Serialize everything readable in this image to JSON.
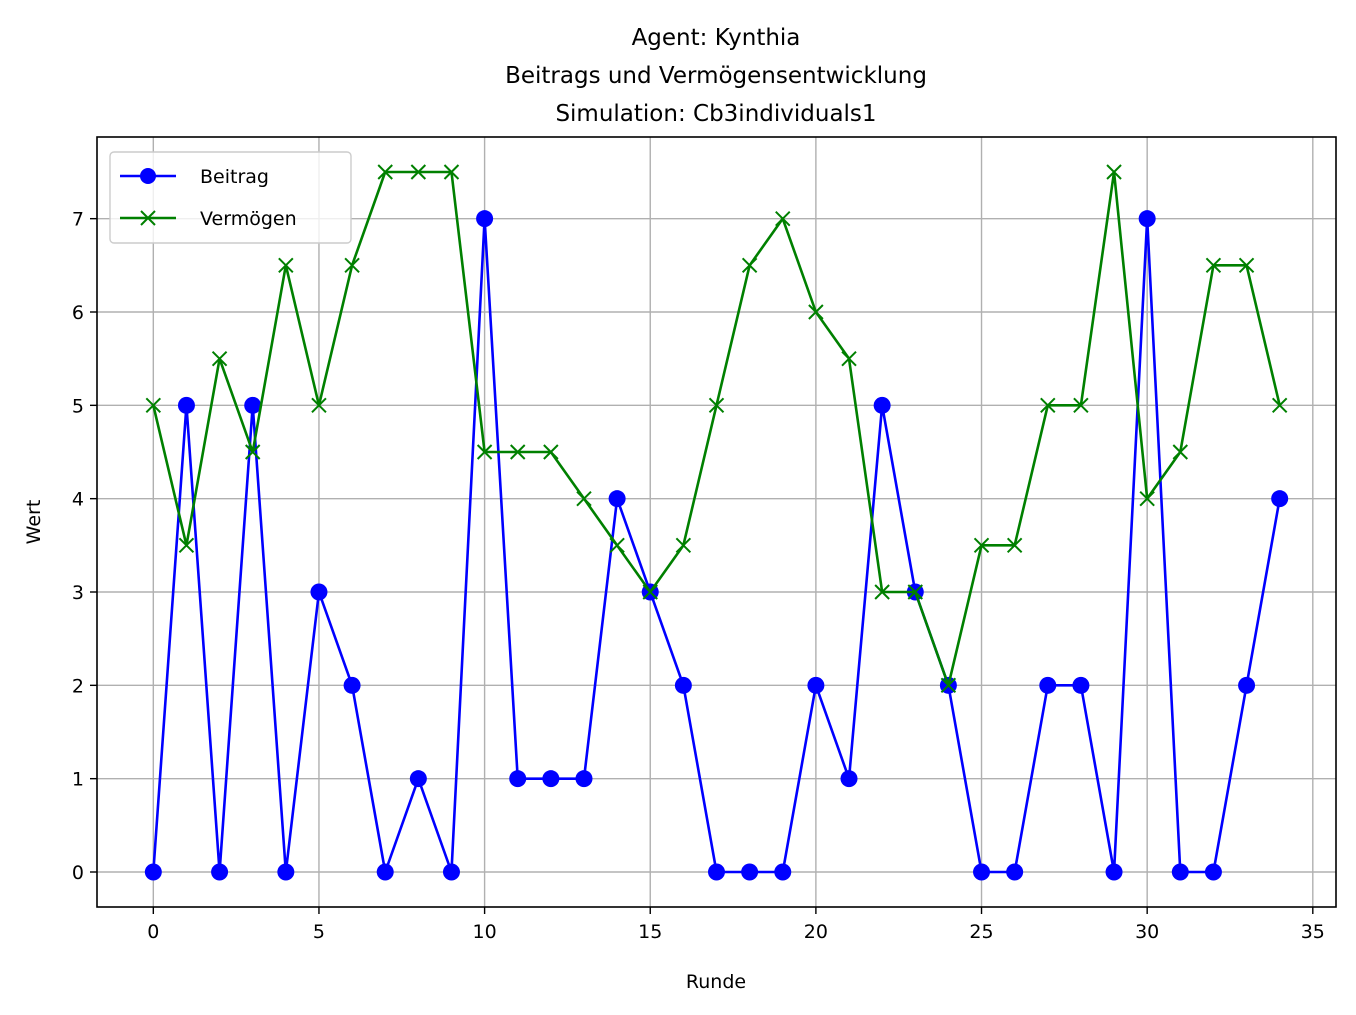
{
  "chart_data": {
    "type": "line",
    "title": [
      "Agent: Kynthia",
      "Beitrags und Vermögensentwicklung",
      "Simulation: Cb3individuals1"
    ],
    "xlabel": "Runde",
    "ylabel": "Wert",
    "xlim": [
      -1.7,
      35.7
    ],
    "ylim": [
      -0.375,
      7.875
    ],
    "xticks": [
      0,
      5,
      10,
      15,
      20,
      25,
      30,
      35
    ],
    "yticks": [
      0,
      1,
      2,
      3,
      4,
      5,
      6,
      7
    ],
    "grid": true,
    "legend_position": "top-left",
    "x": [
      0,
      1,
      2,
      3,
      4,
      5,
      6,
      7,
      8,
      9,
      10,
      11,
      12,
      13,
      14,
      15,
      16,
      17,
      18,
      19,
      20,
      21,
      22,
      23,
      24,
      25,
      26,
      27,
      28,
      29,
      30,
      31,
      32,
      33,
      34
    ],
    "series": [
      {
        "name": "Beitrag",
        "color": "#0000ff",
        "marker": "circle",
        "values": [
          0,
          5,
          0,
          5,
          0,
          3,
          2,
          0,
          1,
          0,
          7,
          1,
          1,
          1,
          4,
          3,
          2,
          0,
          0,
          0,
          2,
          1,
          5,
          3,
          2,
          0,
          0,
          2,
          2,
          0,
          7,
          0,
          0,
          2,
          4
        ]
      },
      {
        "name": "Vermögen",
        "color": "#008000",
        "marker": "x",
        "values": [
          5,
          3.5,
          5.5,
          4.5,
          6.5,
          5,
          6.5,
          7.5,
          7.5,
          7.5,
          4.5,
          4.5,
          4.5,
          4,
          3.5,
          3,
          3.5,
          5,
          6.5,
          7,
          6,
          5.5,
          3,
          3,
          2,
          3.5,
          3.5,
          5,
          5,
          7.5,
          4,
          4.5,
          6.5,
          6.5,
          5
        ]
      }
    ]
  }
}
